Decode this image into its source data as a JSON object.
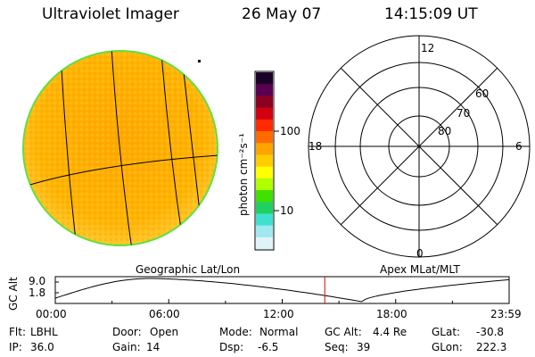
{
  "header": {
    "instrument": "Ultraviolet Imager",
    "date": "26 May 07",
    "time": "14:15:09 UT"
  },
  "colorbar": {
    "unit_label": "photon cm⁻²s⁻¹",
    "ticks": [
      "100",
      "10"
    ],
    "colors": [
      "#1a0026",
      "#5a0050",
      "#8b0020",
      "#d00010",
      "#ff2a00",
      "#ff6a00",
      "#ffa300",
      "#ffcc00",
      "#ffff00",
      "#b0ff00",
      "#40e000",
      "#20d060",
      "#40e0d0",
      "#a0e8f0",
      "#e0f4f8"
    ]
  },
  "polar_plot": {
    "mlt_labels": [
      "12",
      "18",
      "6",
      "0"
    ],
    "lat_labels": [
      "60",
      "70",
      "80"
    ]
  },
  "panel_labels": {
    "left": "Geographic Lat/Lon",
    "right": "Apex MLat/MLT"
  },
  "altitude_plot": {
    "ylabel": "GC Alt",
    "yticks": [
      "9.0",
      "1.8"
    ],
    "xticks": [
      "00:00",
      "06:00",
      "12:00",
      "18:00",
      "23:59"
    ],
    "current_time_marker_hours": 14.25,
    "marker_color": "#e00000",
    "curve_color": "#000000"
  },
  "footer": {
    "filter_label": "Flt:",
    "filter_value": "LBHL",
    "ip_label": "IP:",
    "ip_value": "36.0",
    "door_label": "Door:",
    "door_value": "Open",
    "gain_label": "Gain:",
    "gain_value": "14",
    "mode_label": "Mode:",
    "mode_value": "Normal",
    "dsp_label": "Dsp:",
    "dsp_value": "-6.5",
    "gcalt_label": "GC Alt:",
    "gcalt_value": "4.4 Re",
    "seq_label": "Seq:",
    "seq_value": "39",
    "glat_label": "GLat:",
    "glat_value": "-30.8",
    "glon_label": "GLon:",
    "glon_value": "222.3"
  },
  "colors": {
    "disk_fill": "#ffb000",
    "disk_edge": "#5fe040",
    "foreground": "#000000"
  }
}
